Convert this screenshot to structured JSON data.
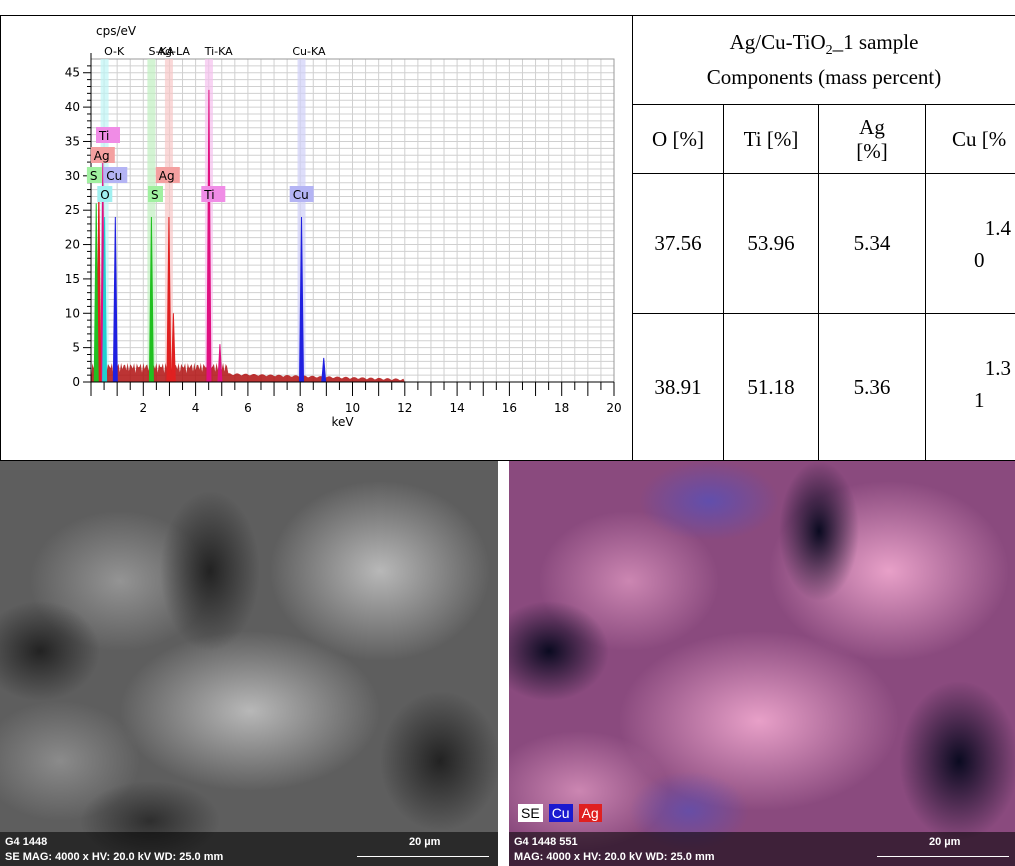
{
  "chart_data": {
    "type": "bar",
    "title": "",
    "ylabel": "cps/eV",
    "xlabel": "keV",
    "xlim": [
      0,
      20
    ],
    "ylim": [
      0,
      47
    ],
    "xticks": [
      "2",
      "4",
      "6",
      "8",
      "10",
      "12",
      "14",
      "16",
      "18",
      "20"
    ],
    "yticks": [
      "0",
      "5",
      "10",
      "15",
      "20",
      "25",
      "30",
      "35",
      "40",
      "45"
    ],
    "grid": true,
    "line_labels": [
      "O-K",
      "S-KA",
      "Ag-LA",
      "Ti-KA",
      "Cu-KA"
    ],
    "line_labels_text": "O-K  S-KAAg-LA  Ti-KA  Cu-KA",
    "element_tags": [
      {
        "label": "Ti",
        "color": "#f08ce6"
      },
      {
        "label": "Ag",
        "color": "#f4a0a0"
      },
      {
        "label": "S",
        "color": "#a0f0a0"
      },
      {
        "label": "Cu",
        "color": "#b4b4f4"
      },
      {
        "label": "Ag",
        "color": "#f4a0a0"
      },
      {
        "label": "O",
        "color": "#a0f0f0"
      },
      {
        "label": "S",
        "color": "#a0f0a0"
      },
      {
        "label": "Ti",
        "color": "#f08ce6"
      },
      {
        "label": "Cu",
        "color": "#b4b4f4"
      }
    ],
    "series": [
      {
        "name": "Ti",
        "color": "#e01080",
        "x": [
          0.45,
          4.51,
          4.93
        ],
        "y": [
          32,
          42.5,
          5.5
        ]
      },
      {
        "name": "Ag",
        "color": "#e02020",
        "x": [
          0.3,
          2.98,
          3.15
        ],
        "y": [
          28.5,
          24,
          10
        ]
      },
      {
        "name": "S",
        "color": "#20c020",
        "x": [
          0.2,
          2.31
        ],
        "y": [
          26,
          24
        ]
      },
      {
        "name": "Cu",
        "color": "#2020e0",
        "x": [
          0.93,
          8.05,
          8.9
        ],
        "y": [
          24,
          24,
          3.5
        ]
      },
      {
        "name": "O",
        "color": "#20d0d0",
        "x": [
          0.52
        ],
        "y": [
          24
        ]
      }
    ]
  },
  "table": {
    "title_prefix": "Ag/Cu-TiO",
    "title_sub": "2",
    "title_suffix": "_1 sample",
    "title_line2": "Components (mass percent)",
    "headers": [
      "O [%]",
      "Ti [%]",
      "Ag [%]",
      "Cu [%"
    ],
    "rows": [
      {
        "o": "37.56",
        "ti": "53.96",
        "ag": "5.34",
        "cu_a": "1.4",
        "cu_b": "0"
      },
      {
        "o": "38.91",
        "ti": "51.18",
        "ag": "5.36",
        "cu_a": "1.3",
        "cu_b": "1"
      }
    ]
  },
  "sem_image": {
    "label": "G4 1448",
    "info": "SE  MAG: 4000 x  HV: 20.0 kV  WD: 25.0 mm",
    "scale": "20 µm",
    "colors": {
      "base": "#555555"
    }
  },
  "map_image": {
    "label": "G4 1448 551",
    "info": "MAG: 4000 x  HV: 20.0 kV  WD: 25.0 mm",
    "scale": "20 µm",
    "legend": [
      {
        "label": "SE",
        "bg": "#ffffff",
        "fg": "#000000"
      },
      {
        "label": "Cu",
        "bg": "#1a1ad0",
        "fg": "#ffffff"
      },
      {
        "label": "Ag",
        "bg": "#e02020",
        "fg": "#ffffff"
      }
    ]
  }
}
